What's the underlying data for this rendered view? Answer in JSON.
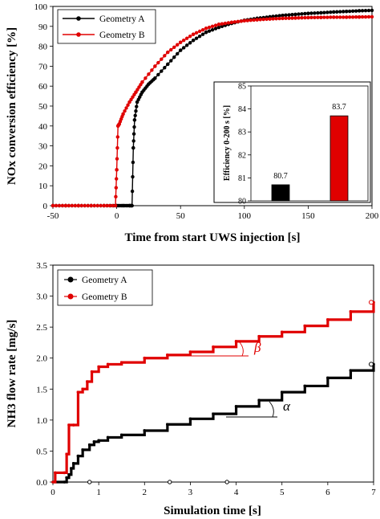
{
  "chart_data": [
    {
      "type": "line",
      "xlabel": "Time from start UWS injection [s]",
      "ylabel": "NOx conversion efficiency [%]",
      "xlim": [
        -50,
        200
      ],
      "ylim": [
        0,
        100
      ],
      "xticks": [
        "-50",
        "0",
        "50",
        "100",
        "150",
        "200"
      ],
      "yticks": [
        "0",
        "10",
        "20",
        "30",
        "40",
        "50",
        "60",
        "70",
        "80",
        "90",
        "100"
      ],
      "legend_position": "top-left",
      "grid": false,
      "series": [
        {
          "name": "Geometry A",
          "color": "#000000",
          "x": [
            -50,
            -40,
            -30,
            -20,
            -10,
            0,
            5,
            10,
            12,
            13,
            14,
            16,
            20,
            25,
            30,
            40,
            50,
            60,
            70,
            80,
            90,
            100,
            110,
            120,
            130,
            140,
            150,
            160,
            170,
            180,
            190,
            200
          ],
          "y": [
            0,
            0,
            0,
            0,
            0,
            0,
            0,
            0,
            0,
            29,
            43,
            52,
            57,
            61,
            64,
            71,
            78,
            83,
            87,
            89.5,
            91.5,
            93,
            94,
            94.8,
            95.5,
            96,
            96.5,
            96.8,
            97.2,
            97.5,
            97.8,
            98
          ]
        },
        {
          "name": "Geometry B",
          "color": "#e00000",
          "x": [
            -50,
            -40,
            -30,
            -20,
            -10,
            -1,
            0,
            1,
            2,
            5,
            10,
            15,
            20,
            30,
            40,
            50,
            60,
            70,
            80,
            90,
            100,
            110,
            120,
            130,
            140,
            150,
            160,
            170,
            180,
            190,
            200
          ],
          "y": [
            0,
            0,
            0,
            0,
            0,
            0,
            18,
            40,
            41,
            46,
            52,
            57,
            62,
            70,
            77,
            82,
            86,
            89,
            91,
            92,
            92.8,
            93.3,
            93.7,
            94,
            94.2,
            94.4,
            94.5,
            94.6,
            94.6,
            94.7,
            94.8
          ]
        }
      ]
    },
    {
      "type": "bar",
      "ylabel": "Efficiency 0-200 s [%]",
      "ylim": [
        80,
        85
      ],
      "yticks": [
        "80",
        "81",
        "82",
        "83",
        "84",
        "85"
      ],
      "categories": [
        "Geometry A",
        "Geometry B"
      ],
      "values": [
        80.7,
        83.7
      ],
      "data_labels": [
        "80.7",
        "83.7"
      ],
      "colors": [
        "#000000",
        "#e00000"
      ]
    },
    {
      "type": "line",
      "xlabel": "Simulation time [s]",
      "ylabel": "NH3 flow rate [mg/s]",
      "xlim": [
        0,
        7
      ],
      "ylim": [
        0,
        3.5
      ],
      "xticks": [
        "0",
        "1",
        "2",
        "3",
        "4",
        "5",
        "6",
        "7"
      ],
      "yticks": [
        "0.0",
        "0.5",
        "1.0",
        "1.5",
        "2.0",
        "2.5",
        "3.0",
        "3.5"
      ],
      "legend_position": "top-left",
      "grid": false,
      "annotations": [
        {
          "text": "β",
          "color": "#e00000",
          "x": 4.5,
          "y": 2.3
        },
        {
          "text": "α",
          "color": "#000000",
          "x": 4.9,
          "y": 1.3
        }
      ],
      "series": [
        {
          "name": "Geometry A",
          "color": "#000000",
          "x": [
            0,
            0.25,
            0.3,
            0.35,
            0.4,
            0.45,
            0.55,
            0.65,
            0.8,
            0.9,
            1.0,
            1.2,
            1.5,
            2.0,
            2.5,
            3.0,
            3.5,
            4.0,
            4.5,
            5.0,
            5.5,
            6.0,
            6.5,
            7.0
          ],
          "y": [
            0,
            0,
            0.07,
            0.12,
            0.22,
            0.3,
            0.42,
            0.52,
            0.6,
            0.65,
            0.67,
            0.72,
            0.76,
            0.83,
            0.93,
            1.02,
            1.1,
            1.22,
            1.32,
            1.45,
            1.55,
            1.68,
            1.8,
            1.9
          ]
        },
        {
          "name": "Geometry B",
          "color": "#e00000",
          "x": [
            0,
            0.05,
            0.25,
            0.3,
            0.35,
            0.45,
            0.55,
            0.65,
            0.75,
            0.85,
            1.0,
            1.2,
            1.5,
            2.0,
            2.5,
            3.0,
            3.5,
            4.0,
            4.5,
            5.0,
            5.5,
            6.0,
            6.5,
            7.0
          ],
          "y": [
            0,
            0.15,
            0.15,
            0.45,
            0.92,
            0.92,
            1.45,
            1.5,
            1.62,
            1.78,
            1.86,
            1.9,
            1.93,
            2.0,
            2.05,
            2.1,
            2.18,
            2.27,
            2.35,
            2.42,
            2.52,
            2.62,
            2.75,
            2.9
          ]
        }
      ]
    }
  ]
}
